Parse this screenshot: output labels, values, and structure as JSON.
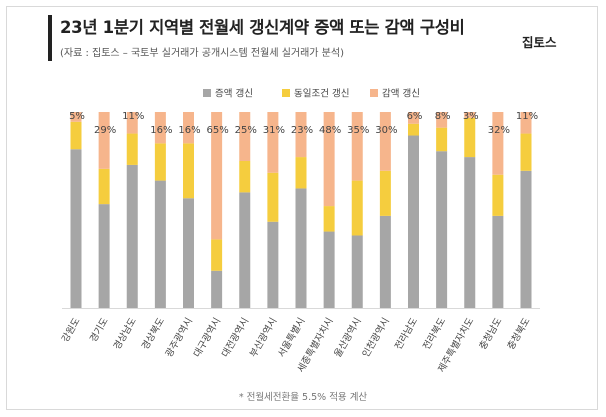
{
  "header": {
    "title": "23년 1분기 지역별 전월세 갱신계약 증액 또는 감액 구성비",
    "subtitle": "(자료 : 집토스 – 국토부 실거래가 공개시스템 전월세 실거래가 분석)",
    "logo": "집토스"
  },
  "footnote": "* 전월세전환율 5.5% 적용 계산",
  "chart_data": {
    "type": "bar",
    "stacked": "percent",
    "title": "23년 1분기 지역별 전월세 갱신계약 증액 또는 감액 구성비",
    "xlabel": "",
    "ylabel": "",
    "ylim": [
      0,
      100
    ],
    "categories": [
      "강원도",
      "경기도",
      "경상남도",
      "경상북도",
      "광주광역시",
      "대구광역시",
      "대전광역시",
      "부산광역시",
      "서울특별시",
      "세종특별자치시",
      "울산광역시",
      "인천광역시",
      "전라남도",
      "전라북도",
      "제주특별자치도",
      "충청남도",
      "충청북도"
    ],
    "series": [
      {
        "name": "증액 갱신",
        "color": "#a6a6a6",
        "values": [
          81,
          53,
          73,
          65,
          56,
          19,
          59,
          44,
          61,
          39,
          37,
          47,
          88,
          80,
          77,
          47,
          70
        ]
      },
      {
        "name": "동일조건 갱신",
        "color": "#f5cd3e",
        "values": [
          14,
          18,
          16,
          19,
          28,
          16,
          16,
          25,
          16,
          13,
          28,
          23,
          6,
          12,
          20,
          21,
          19
        ]
      },
      {
        "name": "감액 갱신",
        "color": "#f6b58c",
        "values": [
          5,
          29,
          11,
          16,
          16,
          65,
          25,
          31,
          23,
          48,
          35,
          30,
          6,
          8,
          3,
          32,
          11
        ]
      }
    ],
    "data_labels": [
      "5%",
      "29%",
      "11%",
      "16%",
      "16%",
      "65%",
      "25%",
      "31%",
      "23%",
      "48%",
      "35%",
      "30%",
      "6%",
      "8%",
      "3%",
      "32%",
      "11%"
    ],
    "legend_position": "top"
  }
}
